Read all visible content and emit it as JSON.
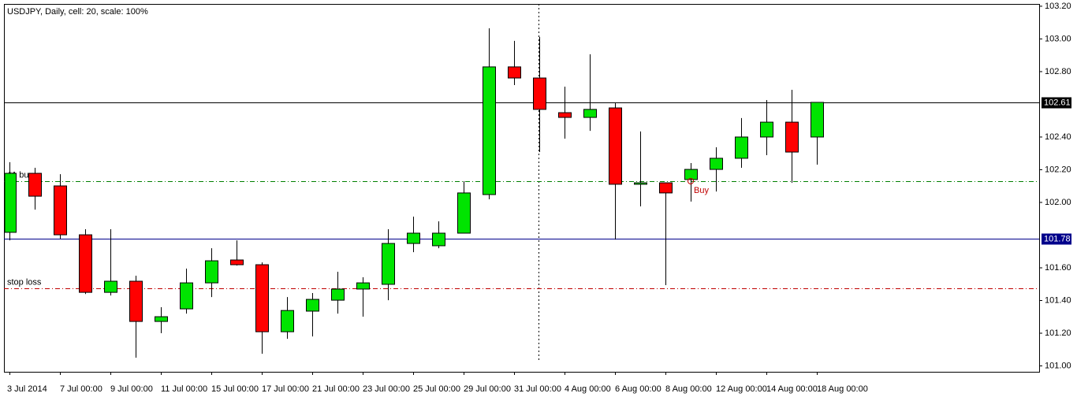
{
  "chart_data": {
    "type": "candlestick",
    "title": "USDJPY, Daily, cell: 20, scale: 100%",
    "categories": [
      "3 Jul 2014",
      null,
      "7 Jul 00:00",
      null,
      "9 Jul 00:00",
      null,
      "11 Jul 00:00",
      null,
      "15 Jul 00:00",
      null,
      "17 Jul 00:00",
      null,
      "21 Jul 00:00",
      null,
      "23 Jul 00:00",
      null,
      "25 Jul 00:00",
      null,
      "29 Jul 00:00",
      null,
      "31 Jul 00:00",
      null,
      "4 Aug 00:00",
      null,
      "6 Aug 00:00",
      null,
      "8 Aug 00:00",
      null,
      "12 Aug 00:00",
      null,
      "14 Aug 00:00",
      null,
      "18 Aug 00:00"
    ],
    "open": [
      101.817,
      102.178,
      102.101,
      101.802,
      101.45,
      101.518,
      101.272,
      101.349,
      101.508,
      101.648,
      101.619,
      101.209,
      101.335,
      101.402,
      101.47,
      101.499,
      101.749,
      101.735,
      101.812,
      102.048,
      102.829,
      102.761,
      102.549,
      102.52,
      102.578,
      102.111,
      102.12,
      102.14,
      102.202,
      102.27,
      102.4,
      102.491,
      102.4
    ],
    "high": [
      102.246,
      102.212,
      102.173,
      101.836,
      101.836,
      101.552,
      101.359,
      101.595,
      101.72,
      101.768,
      101.633,
      101.421,
      101.446,
      101.576,
      101.542,
      101.836,
      101.913,
      101.884,
      102.13,
      103.065,
      102.988,
      103.012,
      102.708,
      102.906,
      102.607,
      102.434,
      102.12,
      102.241,
      102.337,
      102.516,
      102.626,
      102.689,
      102.612
    ],
    "low": [
      101.768,
      101.956,
      101.778,
      101.44,
      101.431,
      101.05,
      101.2,
      101.32,
      101.421,
      101.614,
      101.074,
      101.166,
      101.18,
      101.32,
      101.301,
      101.402,
      101.696,
      101.72,
      101.81,
      102.019,
      102.718,
      102.308,
      102.39,
      102.438,
      101.773,
      101.976,
      101.494,
      102.005,
      102.067,
      102.212,
      102.289,
      102.12,
      102.231
    ],
    "close": [
      102.178,
      102.038,
      101.802,
      101.45,
      101.518,
      101.272,
      101.301,
      101.508,
      101.643,
      101.619,
      101.209,
      101.339,
      101.407,
      101.47,
      101.508,
      101.749,
      101.812,
      101.812,
      102.058,
      102.829,
      102.761,
      102.569,
      102.52,
      102.569,
      102.111,
      102.12,
      102.058,
      102.202,
      102.27,
      102.4,
      102.491,
      102.308,
      102.612
    ],
    "up_color": "#00e400",
    "down_color": "#ff0000",
    "ylim": [
      100.964,
      103.214
    ],
    "yticks": [
      {
        "value": 101.0,
        "label": "101.00"
      },
      {
        "value": 101.2,
        "label": "101.20"
      },
      {
        "value": 101.4,
        "label": "101.40"
      },
      {
        "value": 101.6,
        "label": "101.60"
      },
      {
        "value": 102.0,
        "label": "102.00"
      },
      {
        "value": 102.2,
        "label": "102.20"
      },
      {
        "value": 102.4,
        "label": "102.40"
      },
      {
        "value": 102.8,
        "label": "102.80"
      },
      {
        "value": 103.0,
        "label": "103.00"
      },
      {
        "value": 103.2,
        "label": "103.20"
      }
    ],
    "levels": [
      {
        "label": "#1 buy",
        "value": 102.13,
        "color": "#008000"
      },
      {
        "label": "stop loss",
        "value": 101.475,
        "color": "#c00000"
      }
    ],
    "price_lines": [
      {
        "value": 102.61,
        "label": "102.61",
        "color": "#000000"
      },
      {
        "value": 101.78,
        "label": "101.78",
        "color": "#00008b"
      }
    ],
    "annotations": [
      {
        "text": "Buy",
        "value": 102.13,
        "color": "#c00000"
      }
    ]
  }
}
